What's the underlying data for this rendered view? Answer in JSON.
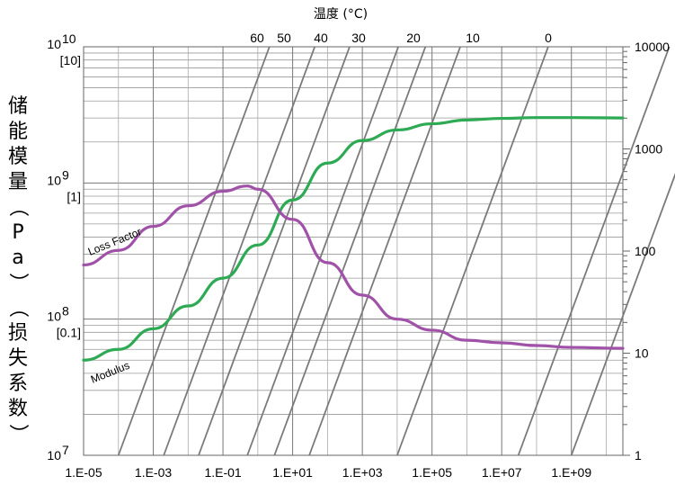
{
  "chart_data": {
    "type": "line",
    "title": "温度 (°C)",
    "ylabel": "储能模量（Pa）（损失系数）",
    "x_tick_labels": [
      "1.E-05",
      "1.E-03",
      "1.E-01",
      "1.E+01",
      "1.E+03",
      "1.E+05",
      "1.E+07",
      "1.E+09"
    ],
    "x_log_range": [
      1e-05,
      30000000000.0
    ],
    "y_left_ticks": [
      {
        "exp": "10",
        "bracket": "[10]",
        "value": 10000000000.0
      },
      {
        "exp": "9",
        "bracket": "[1]",
        "value": 1000000000.0
      },
      {
        "exp": "8",
        "bracket": "[0.1]",
        "value": 100000000.0
      },
      {
        "exp": "7",
        "bracket": "",
        "value": 10000000.0
      }
    ],
    "y_left_range": [
      10000000.0,
      10000000000.0
    ],
    "y_right_ticks": [
      "10000",
      "1000",
      "100",
      "10",
      "1"
    ],
    "y_right_range": [
      1,
      10000
    ],
    "temperature_labels": [
      "60",
      "50",
      "40",
      "30",
      "20",
      "10",
      "0"
    ],
    "series": [
      {
        "name": "Modulus",
        "color": "#2eaa55",
        "x": [
          1e-05,
          0.0001,
          0.001,
          0.01,
          0.1,
          1,
          10,
          100,
          1000,
          10000,
          100000,
          1000000.0,
          10000000.0,
          100000000.0,
          1000000000.0,
          30000000000.0
        ],
        "values": [
          50000000.0,
          60000000.0,
          85000000.0,
          125000000.0,
          200000000.0,
          350000000.0,
          750000000.0,
          1400000000.0,
          2050000000.0,
          2450000000.0,
          2720000000.0,
          2900000000.0,
          2980000000.0,
          3020000000.0,
          3020000000.0,
          3000000000.0
        ]
      },
      {
        "name": "Loss Factor",
        "color": "#a052a8",
        "x": [
          1e-05,
          0.0001,
          0.001,
          0.01,
          0.1,
          0.5,
          1,
          10,
          100,
          1000,
          10000,
          100000,
          1000000.0,
          10000000.0,
          100000000.0,
          1000000000.0,
          30000000000.0
        ],
        "values": [
          0.25,
          0.32,
          0.48,
          0.68,
          0.87,
          0.95,
          0.9,
          0.54,
          0.26,
          0.15,
          0.1,
          0.083,
          0.07,
          0.067,
          0.064,
          0.062,
          0.061
        ]
      }
    ],
    "isotherm_x_bottom": [
      0.0001,
      0.02,
      0.5,
      30,
      10000,
      30000000.0
    ],
    "annotations": [
      "Loss Factor",
      "Modulus"
    ]
  }
}
